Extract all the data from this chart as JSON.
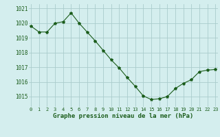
{
  "x": [
    0,
    1,
    2,
    3,
    4,
    5,
    6,
    7,
    8,
    9,
    10,
    11,
    12,
    13,
    14,
    15,
    16,
    17,
    18,
    19,
    20,
    21,
    22,
    23
  ],
  "y": [
    1019.8,
    1019.4,
    1019.4,
    1020.0,
    1020.1,
    1020.7,
    1020.0,
    1019.4,
    1018.8,
    1018.15,
    1017.5,
    1016.95,
    1016.3,
    1015.7,
    1015.05,
    1014.8,
    1014.85,
    1015.0,
    1015.55,
    1015.9,
    1016.15,
    1016.7,
    1016.8,
    1016.85
  ],
  "line_color": "#1a5c1a",
  "marker": "*",
  "marker_size": 3,
  "bg_color": "#d4eeee",
  "grid_color": "#aacccc",
  "xlabel": "Graphe pression niveau de la mer (hPa)",
  "xlabel_color": "#1a5c1a",
  "tick_color": "#1a5c1a",
  "ylim": [
    1014.3,
    1021.3
  ],
  "yticks": [
    1015,
    1016,
    1017,
    1018,
    1019,
    1020,
    1021
  ],
  "xticks": [
    0,
    1,
    2,
    3,
    4,
    5,
    6,
    7,
    8,
    9,
    10,
    11,
    12,
    13,
    14,
    15,
    16,
    17,
    18,
    19,
    20,
    21,
    22,
    23
  ],
  "xlim": [
    -0.3,
    23.3
  ]
}
